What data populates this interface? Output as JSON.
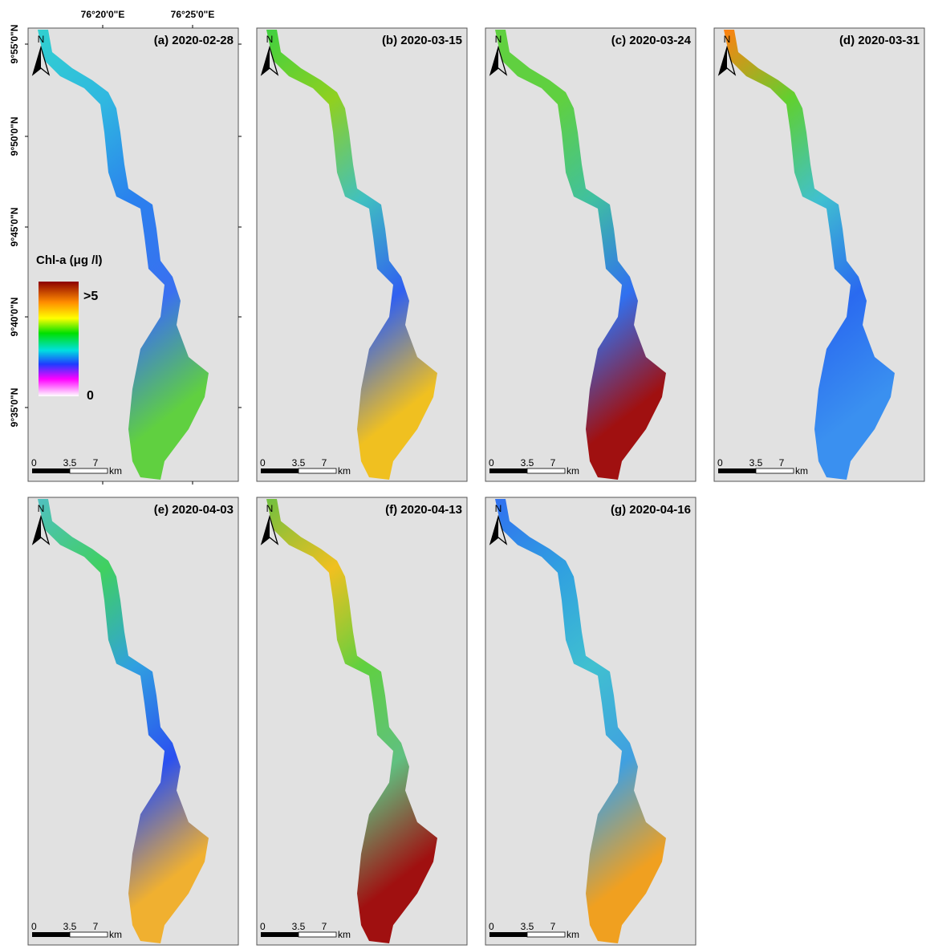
{
  "figure": {
    "panels": [
      {
        "label": "(a) 2020-02-28"
      },
      {
        "label": "(b) 2020-03-15"
      },
      {
        "label": "(c) 2020-03-24"
      },
      {
        "label": "(d) 2020-03-31"
      },
      {
        "label": "(e) 2020-04-03"
      },
      {
        "label": "(f) 2020-04-13"
      },
      {
        "label": "(g) 2020-04-16"
      }
    ],
    "north_label": "N",
    "scale_bar": {
      "ticks": [
        "0",
        "3.5",
        "7"
      ],
      "unit": "km"
    },
    "latitude_labels": [
      "9°55'0\"N",
      "9°50'0\"N",
      "9°45'0\"N",
      "9°40'0\"N",
      "9°35'0\"N"
    ],
    "longitude_labels": [
      "76°20'0\"E",
      "76°25'0\"E"
    ],
    "legend": {
      "title": "Chl-a (μg /l)",
      "max_label": ">5",
      "min_label": "0"
    }
  }
}
